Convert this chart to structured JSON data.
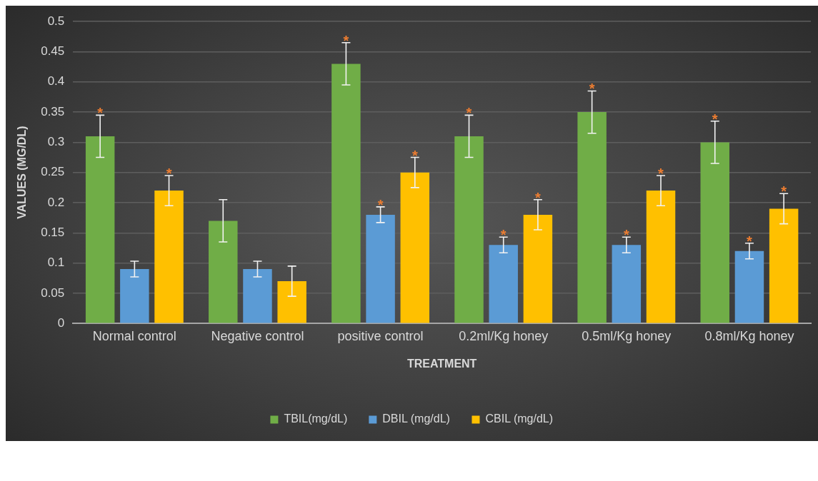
{
  "chart_data": {
    "type": "bar",
    "xlabel": "TREATMENT",
    "ylabel": "VALUES (MG/DL)",
    "categories": [
      "Normal control",
      "Negative control",
      "positive control",
      "0.2ml/Kg honey",
      "0.5ml/Kg honey",
      "0.8ml/Kg honey"
    ],
    "series": [
      {
        "name": "TBIL(mg/dL)",
        "color": "#70ad47",
        "values": [
          0.31,
          0.17,
          0.43,
          0.31,
          0.35,
          0.3
        ],
        "errors": [
          0.035,
          0.035,
          0.035,
          0.035,
          0.035,
          0.035
        ],
        "value_labels": [
          "*",
          null,
          "*",
          "*",
          "*",
          "*"
        ]
      },
      {
        "name": "DBIL (mg/dL)",
        "color": "#5b9bd5",
        "values": [
          0.09,
          0.09,
          0.18,
          0.13,
          0.13,
          0.12
        ],
        "errors": [
          0.013,
          0.013,
          0.013,
          0.013,
          0.013,
          0.013
        ],
        "value_labels": [
          null,
          null,
          "*",
          "*",
          "*",
          "*"
        ]
      },
      {
        "name": "CBIL (mg/dL)",
        "color": "#ffc000",
        "values": [
          0.22,
          0.07,
          0.25,
          0.18,
          0.22,
          0.19
        ],
        "errors": [
          0.025,
          0.025,
          0.025,
          0.025,
          0.025,
          0.025
        ],
        "value_labels": [
          "*",
          null,
          "*",
          "*",
          "*",
          "*"
        ]
      }
    ],
    "ylim": [
      0,
      0.5
    ],
    "yticks": [
      0,
      0.05,
      0.1,
      0.15,
      0.2,
      0.25,
      0.3,
      0.35,
      0.4,
      0.45,
      0.5
    ],
    "grid": "y",
    "legend": "bottom"
  }
}
